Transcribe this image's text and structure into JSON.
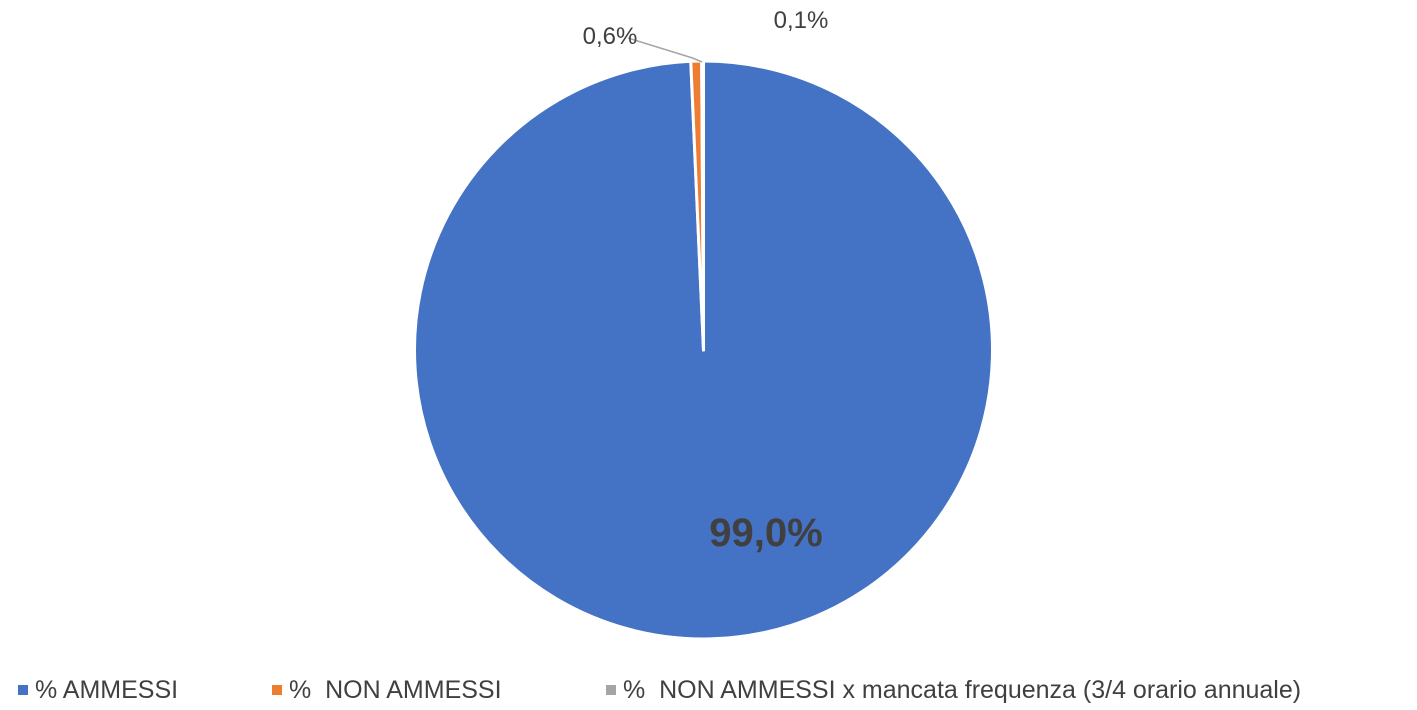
{
  "chart_data": {
    "type": "pie",
    "slices": [
      {
        "label": "% AMMESSI",
        "value": 99.0,
        "display": "99,0%",
        "color": "#4472C4"
      },
      {
        "label": "%  NON AMMESSI",
        "value": 0.6,
        "display": "0,6%",
        "color": "#ED7D31"
      },
      {
        "label": "%  NON AMMESSI x mancata frequenza (3/4 orario annuale)",
        "value": 0.1,
        "display": "0,1%",
        "color": "#A5A5A5"
      }
    ],
    "start_angle": "12 o'clock, clockwise",
    "legend_position": "bottom",
    "label_color": "#404040",
    "leader_line_color": "#A5A5A5"
  }
}
